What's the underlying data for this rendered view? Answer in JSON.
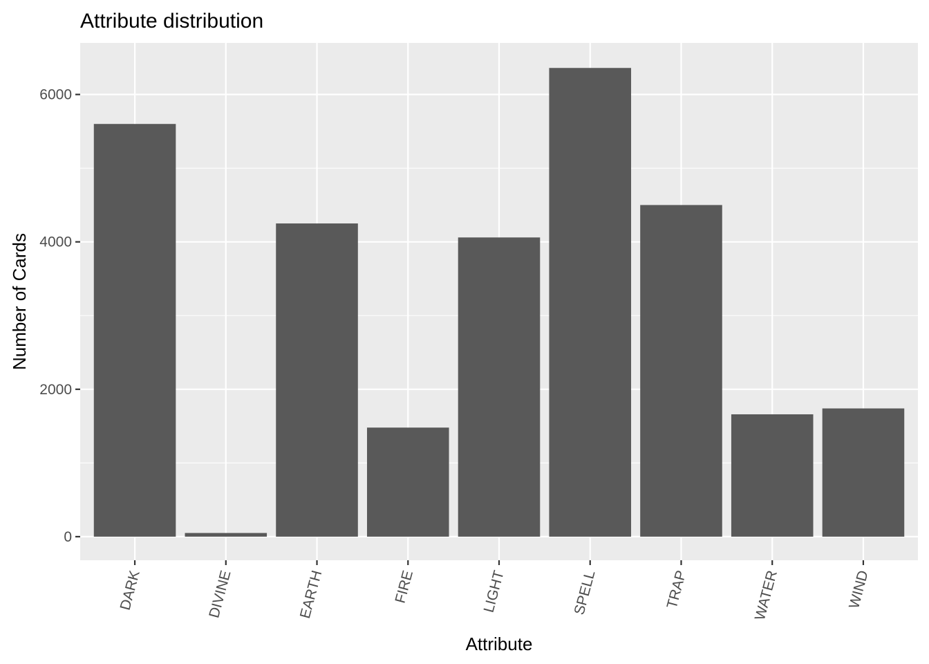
{
  "chart_data": {
    "type": "bar",
    "title": "Attribute distribution",
    "xlabel": "Attribute",
    "ylabel": "Number of Cards",
    "categories": [
      "DARK",
      "DIVINE",
      "EARTH",
      "FIRE",
      "LIGHT",
      "SPELL",
      "TRAP",
      "WATER",
      "WIND"
    ],
    "values": [
      5600,
      50,
      4250,
      1480,
      4060,
      6360,
      4500,
      1660,
      1740
    ],
    "ylim": [
      -320,
      6700
    ],
    "yticks": [
      0,
      2000,
      4000,
      6000
    ],
    "grid": true,
    "bar_color": "#595959",
    "panel_color": "#ebebeb",
    "grid_color": "#ffffff"
  }
}
